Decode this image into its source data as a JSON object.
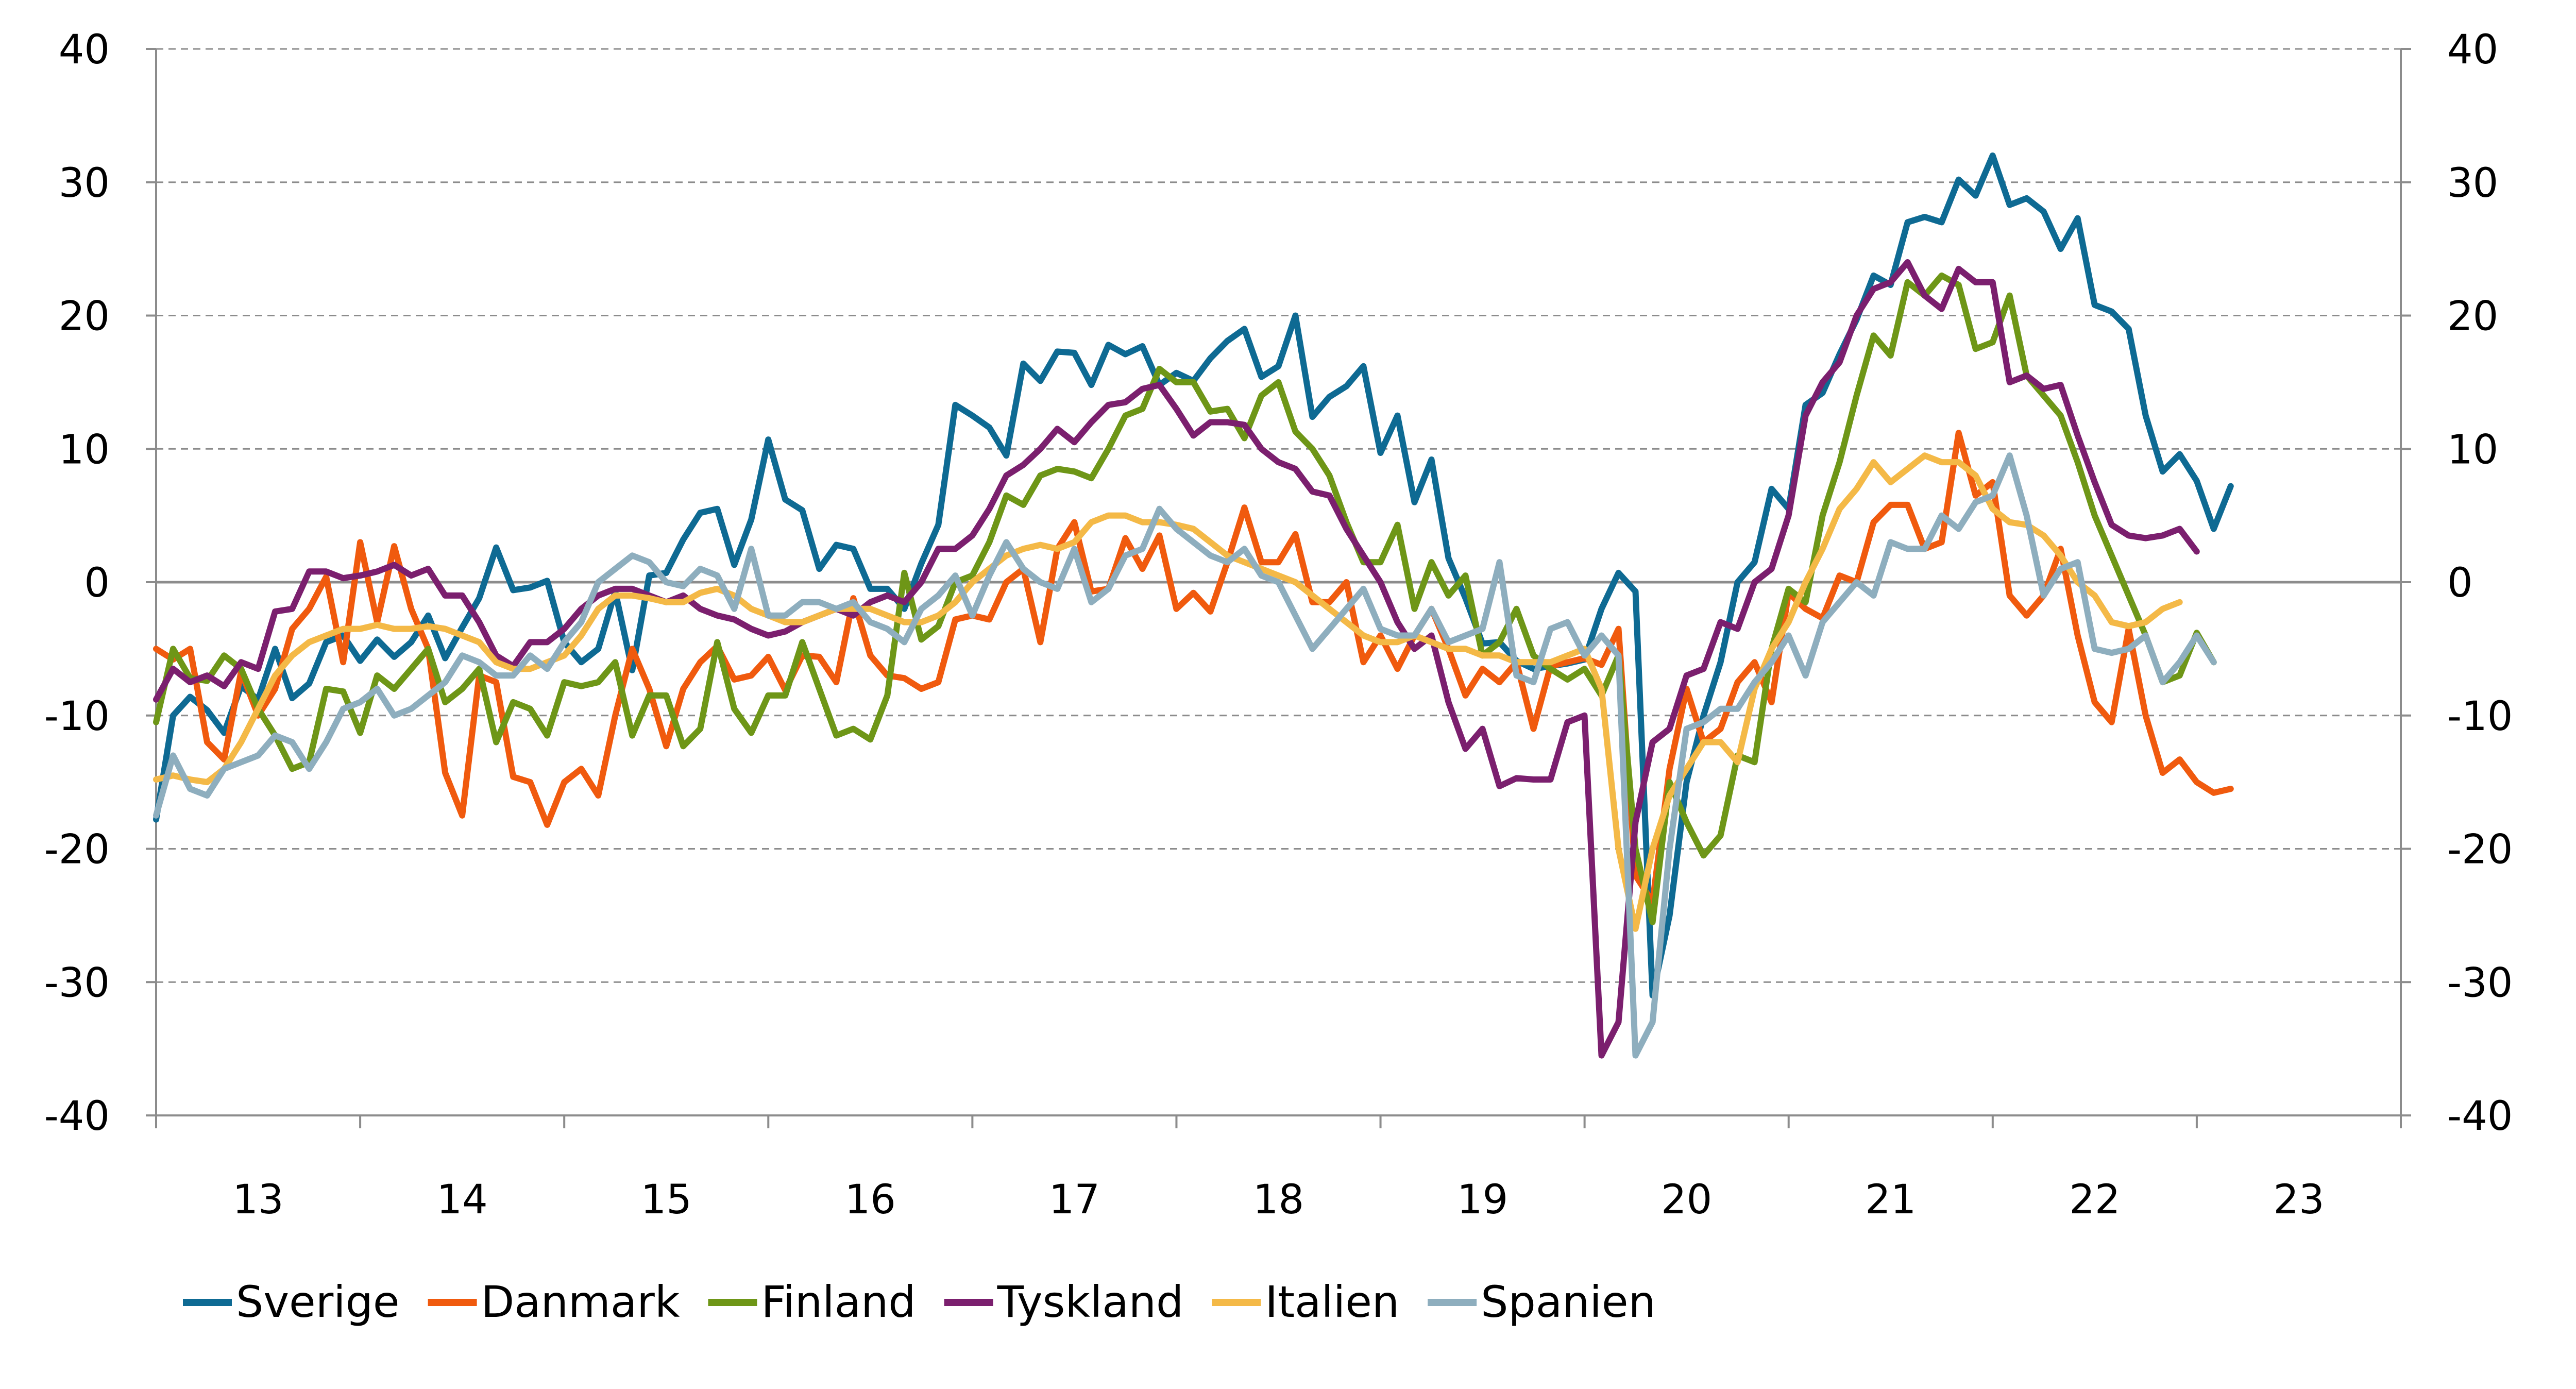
{
  "chart_data": {
    "type": "line",
    "title": "",
    "xlabel": "",
    "ylabel": "",
    "ylim": [
      -40,
      40
    ],
    "yticks": [
      40,
      30,
      20,
      10,
      0,
      -10,
      -20,
      -30,
      -40
    ],
    "secondary_y_axis": true,
    "xlim": [
      2013.0,
      2024.0
    ],
    "x_tick_labels": [
      "13",
      "14",
      "15",
      "16",
      "17",
      "18",
      "19",
      "20",
      "21",
      "22",
      "23"
    ],
    "grid": "horizontal-dashed",
    "zero_line": true,
    "legend_position": "bottom",
    "series": [
      {
        "name": "Sverige",
        "color": "#0E6A93",
        "x_start": 2013.0,
        "step": 0.08333,
        "values": [
          -17.8,
          -10,
          -8.6,
          -9.6,
          -11.3,
          -7.8,
          -8.8,
          -5,
          -8.7,
          -7.6,
          -4.5,
          -4,
          -5.9,
          -4.3,
          -5.6,
          -4.5,
          -2.5,
          -5.7,
          -3.4,
          -1.2,
          2.6,
          -0.6,
          -0.4,
          0.1,
          -4.5,
          -6,
          -5,
          -0.7,
          -6.6,
          0.5,
          0.7,
          3.2,
          5.2,
          5.5,
          1.3,
          4.7,
          10.7,
          6.2,
          5.4,
          1,
          2.8,
          2.5,
          -0.5,
          -0.5,
          -2,
          1.4,
          4.3,
          13.3,
          12.5,
          11.6,
          9.5,
          16.4,
          15.1,
          17.3,
          17.2,
          14.8,
          17.8,
          17.1,
          17.7,
          14.8,
          15.7,
          15.1,
          16.8,
          18.1,
          19,
          15.4,
          16.2,
          20,
          12.4,
          13.9,
          14.7,
          16.2,
          9.7,
          12.5,
          6,
          9.2,
          1.8,
          -1.2,
          -4.6,
          -4.5,
          -5.9,
          -6.5,
          -6.3,
          -6.1,
          -5.8,
          -2,
          0.7,
          -0.7,
          -31,
          -25,
          -15,
          -10,
          -6,
          0,
          1.5,
          7,
          5.5,
          13.3,
          14.2,
          17.1,
          19.7,
          23,
          22.3,
          27,
          27.4,
          27,
          30.2,
          29,
          32,
          28.3,
          28.8,
          27.8,
          25,
          27.3,
          20.8,
          20.3,
          19,
          12.5,
          8.3,
          9.6,
          7.6,
          4,
          7.2
        ]
      },
      {
        "name": "Danmark",
        "color": "#F05A0E",
        "x_start": 2013.0,
        "step": 0.08333,
        "values": [
          -5,
          -5.8,
          -5,
          -12,
          -13.3,
          -6.7,
          -10,
          -8,
          -3.5,
          -2,
          0.4,
          -6,
          3,
          -3,
          2.7,
          -2,
          -5,
          -14.3,
          -17.5,
          -7,
          -7.5,
          -14.6,
          -15,
          -18.2,
          -15,
          -14,
          -16,
          -10,
          -5,
          -8,
          -12.3,
          -8,
          -6,
          -4.8,
          -7.3,
          -7,
          -5.6,
          -8.1,
          -5.5,
          -5.6,
          -7.5,
          -1.2,
          -5.5,
          -7,
          -7.2,
          -8,
          -7.5,
          -2.8,
          -2.5,
          -2.8,
          0,
          1,
          -4.5,
          2.5,
          4.5,
          -0.7,
          -0.5,
          3.3,
          1,
          3.5,
          -2,
          -0.8,
          -2.2,
          1.5,
          5.6,
          1.5,
          1.5,
          3.6,
          -1.5,
          -1.5,
          0,
          -6,
          -4,
          -6.5,
          -4,
          -2,
          -5,
          -8.5,
          -6.5,
          -7.5,
          -6,
          -11,
          -6.3,
          -6,
          -5.7,
          -6.2,
          -3.5,
          -22,
          -24,
          -14,
          -8,
          -12,
          -11,
          -7.5,
          -6,
          -9,
          -0.8,
          -2,
          -2.7,
          0.5,
          0,
          4.5,
          5.8,
          5.8,
          2.5,
          3,
          11.2,
          6.5,
          7.5,
          -1,
          -2.5,
          -1,
          2.5,
          -4,
          -9,
          -10.5,
          -3.5,
          -10,
          -14.3,
          -13.3,
          -15,
          -15.8,
          -15.5
        ]
      },
      {
        "name": "Finland",
        "color": "#6E9617",
        "x_start": 2013.0,
        "step": 0.08333,
        "values": [
          -10.5,
          -5,
          -7.2,
          -7.4,
          -5.5,
          -6.5,
          -9.5,
          -11.5,
          -14,
          -13.5,
          -8,
          -8.2,
          -11.3,
          -7,
          -8,
          -6.5,
          -5,
          -9,
          -8,
          -6.5,
          -12,
          -9,
          -9.5,
          -11.5,
          -7.5,
          -7.8,
          -7.5,
          -6,
          -11.5,
          -8.5,
          -8.5,
          -12.3,
          -11,
          -4.5,
          -9.5,
          -11.3,
          -8.5,
          -8.5,
          -4.5,
          -8,
          -11.5,
          -11,
          -11.8,
          -8.5,
          0.7,
          -4.3,
          -3.3,
          0,
          0.5,
          3,
          6.5,
          5.8,
          8,
          8.5,
          8.3,
          7.8,
          10,
          12.5,
          13,
          16,
          15,
          15,
          12.8,
          13,
          10.8,
          14,
          15,
          11.3,
          10,
          8,
          4.5,
          1.5,
          1.5,
          4.3,
          -2,
          1.5,
          -1,
          0.5,
          -5.5,
          -4.5,
          -2,
          -5.5,
          -6.5,
          -7.3,
          -6.5,
          -8.5,
          -5.5,
          -20,
          -25.5,
          -15,
          -18,
          -20.5,
          -19,
          -13,
          -13.5,
          -5,
          -0.5,
          -1.5,
          5,
          9,
          14,
          18.5,
          17,
          22.5,
          21.5,
          23,
          22.3,
          17.5,
          18,
          21.5,
          15.5,
          14,
          12.5,
          9,
          5,
          2,
          -1,
          -4,
          -7.5,
          -7,
          -3.8,
          -6
        ]
      },
      {
        "name": "Tyskland",
        "color": "#7B1F6E",
        "x_start": 2013.0,
        "step": 0.08333,
        "values": [
          -8.8,
          -6.5,
          -7.5,
          -7,
          -7.8,
          -6,
          -6.5,
          -2.2,
          -2,
          0.8,
          0.8,
          0.3,
          0.5,
          0.8,
          1.3,
          0.5,
          1,
          -1,
          -1,
          -3,
          -5.5,
          -6.3,
          -4.5,
          -4.5,
          -3.5,
          -2,
          -1,
          -0.5,
          -0.5,
          -1,
          -1.5,
          -1,
          -2,
          -2.5,
          -2.8,
          -3.5,
          -4,
          -3.7,
          -3,
          -2.5,
          -2,
          -2.5,
          -1.5,
          -1,
          -1.5,
          0,
          2.5,
          2.5,
          3.5,
          5.5,
          8,
          8.8,
          10,
          11.5,
          10.5,
          12,
          13.3,
          13.5,
          14.5,
          14.8,
          13,
          11,
          12,
          12,
          11.8,
          10,
          9,
          8.5,
          6.8,
          6.5,
          4,
          2,
          0,
          -3,
          -5,
          -4,
          -9,
          -12.5,
          -11,
          -15.3,
          -14.7,
          -14.8,
          -14.8,
          -10.5,
          -10,
          -35.5,
          -33,
          -18,
          -12,
          -11,
          -7,
          -6.5,
          -3,
          -3.5,
          0,
          1,
          5,
          12.5,
          15,
          16.5,
          20,
          22,
          22.5,
          24,
          21.5,
          20.5,
          23.5,
          22.5,
          22.5,
          15,
          15.5,
          14.5,
          14.8,
          11,
          7.5,
          4.3,
          3.5,
          3.3,
          3.5,
          4,
          2.3
        ]
      },
      {
        "name": "Italien",
        "color": "#F4B947",
        "x_start": 2013.0,
        "step": 0.08333,
        "values": [
          -14.8,
          -14.5,
          -14.8,
          -15,
          -14,
          -12,
          -9.5,
          -7,
          -5.5,
          -4.5,
          -4,
          -3.5,
          -3.5,
          -3.2,
          -3.5,
          -3.5,
          -3.3,
          -3.5,
          -4,
          -4.5,
          -6,
          -6.5,
          -6.5,
          -6,
          -5.5,
          -4,
          -2,
          -1,
          -1,
          -1.2,
          -1.5,
          -1.5,
          -0.8,
          -0.5,
          -1,
          -2,
          -2.5,
          -3,
          -3,
          -2.5,
          -2,
          -2,
          -2,
          -2.5,
          -3,
          -3,
          -2.5,
          -1.5,
          0,
          1,
          2,
          2.5,
          2.8,
          2.5,
          3,
          4.5,
          5,
          5,
          4.5,
          4.5,
          4.3,
          4,
          3,
          2,
          1.5,
          1,
          0.5,
          0,
          -1,
          -2,
          -3,
          -4,
          -4.5,
          -4.5,
          -4,
          -4.5,
          -5,
          -5,
          -5.5,
          -5.5,
          -6,
          -6,
          -6,
          -5.5,
          -5,
          -8,
          -20,
          -26,
          -20,
          -16,
          -14,
          -12,
          -12,
          -13.5,
          -8,
          -5,
          -3,
          0,
          2.5,
          5.5,
          7,
          9,
          7.5,
          8.5,
          9.5,
          9,
          9,
          8,
          5.5,
          4.5,
          4.3,
          3.5,
          2,
          0,
          -1,
          -3,
          -3.3,
          -3,
          -2,
          -1.5
        ]
      },
      {
        "name": "Spanien",
        "color": "#8EAEBE",
        "x_start": 2013.0,
        "step": 0.08333,
        "values": [
          -17.5,
          -13,
          -15.5,
          -16,
          -14,
          -13.5,
          -13,
          -11.5,
          -12,
          -14,
          -12,
          -9.5,
          -9,
          -8,
          -10,
          -9.5,
          -8.5,
          -7.5,
          -5.5,
          -6,
          -7,
          -7,
          -5.5,
          -6.5,
          -4.5,
          -3,
          0,
          1,
          2,
          1.5,
          0,
          -0.3,
          1,
          0.5,
          -2,
          2.5,
          -2.5,
          -2.5,
          -1.5,
          -1.5,
          -2,
          -1.5,
          -3,
          -3.5,
          -4.5,
          -2,
          -1,
          0.5,
          -2.5,
          0.5,
          3,
          1,
          0,
          -0.5,
          2.5,
          -1.5,
          -0.5,
          2,
          2.5,
          5.5,
          4,
          3,
          2,
          1.5,
          2.5,
          0.5,
          0,
          -2.5,
          -5,
          -3.5,
          -2,
          -0.5,
          -3.5,
          -4,
          -4,
          -2,
          -4.5,
          -4,
          -3.5,
          1.5,
          -7,
          -7.5,
          -3.5,
          -3,
          -5.5,
          -4,
          -5.5,
          -35.5,
          -33,
          -20,
          -11,
          -10.5,
          -9.5,
          -9.5,
          -7.5,
          -6,
          -4,
          -7,
          -3,
          -1.5,
          0,
          -1,
          3,
          2.5,
          2.5,
          5,
          4,
          6,
          6.5,
          9.5,
          5,
          -1,
          1,
          1.5,
          -5,
          -5.3,
          -5,
          -4,
          -7.5,
          -6,
          -4,
          -6
        ]
      }
    ]
  }
}
